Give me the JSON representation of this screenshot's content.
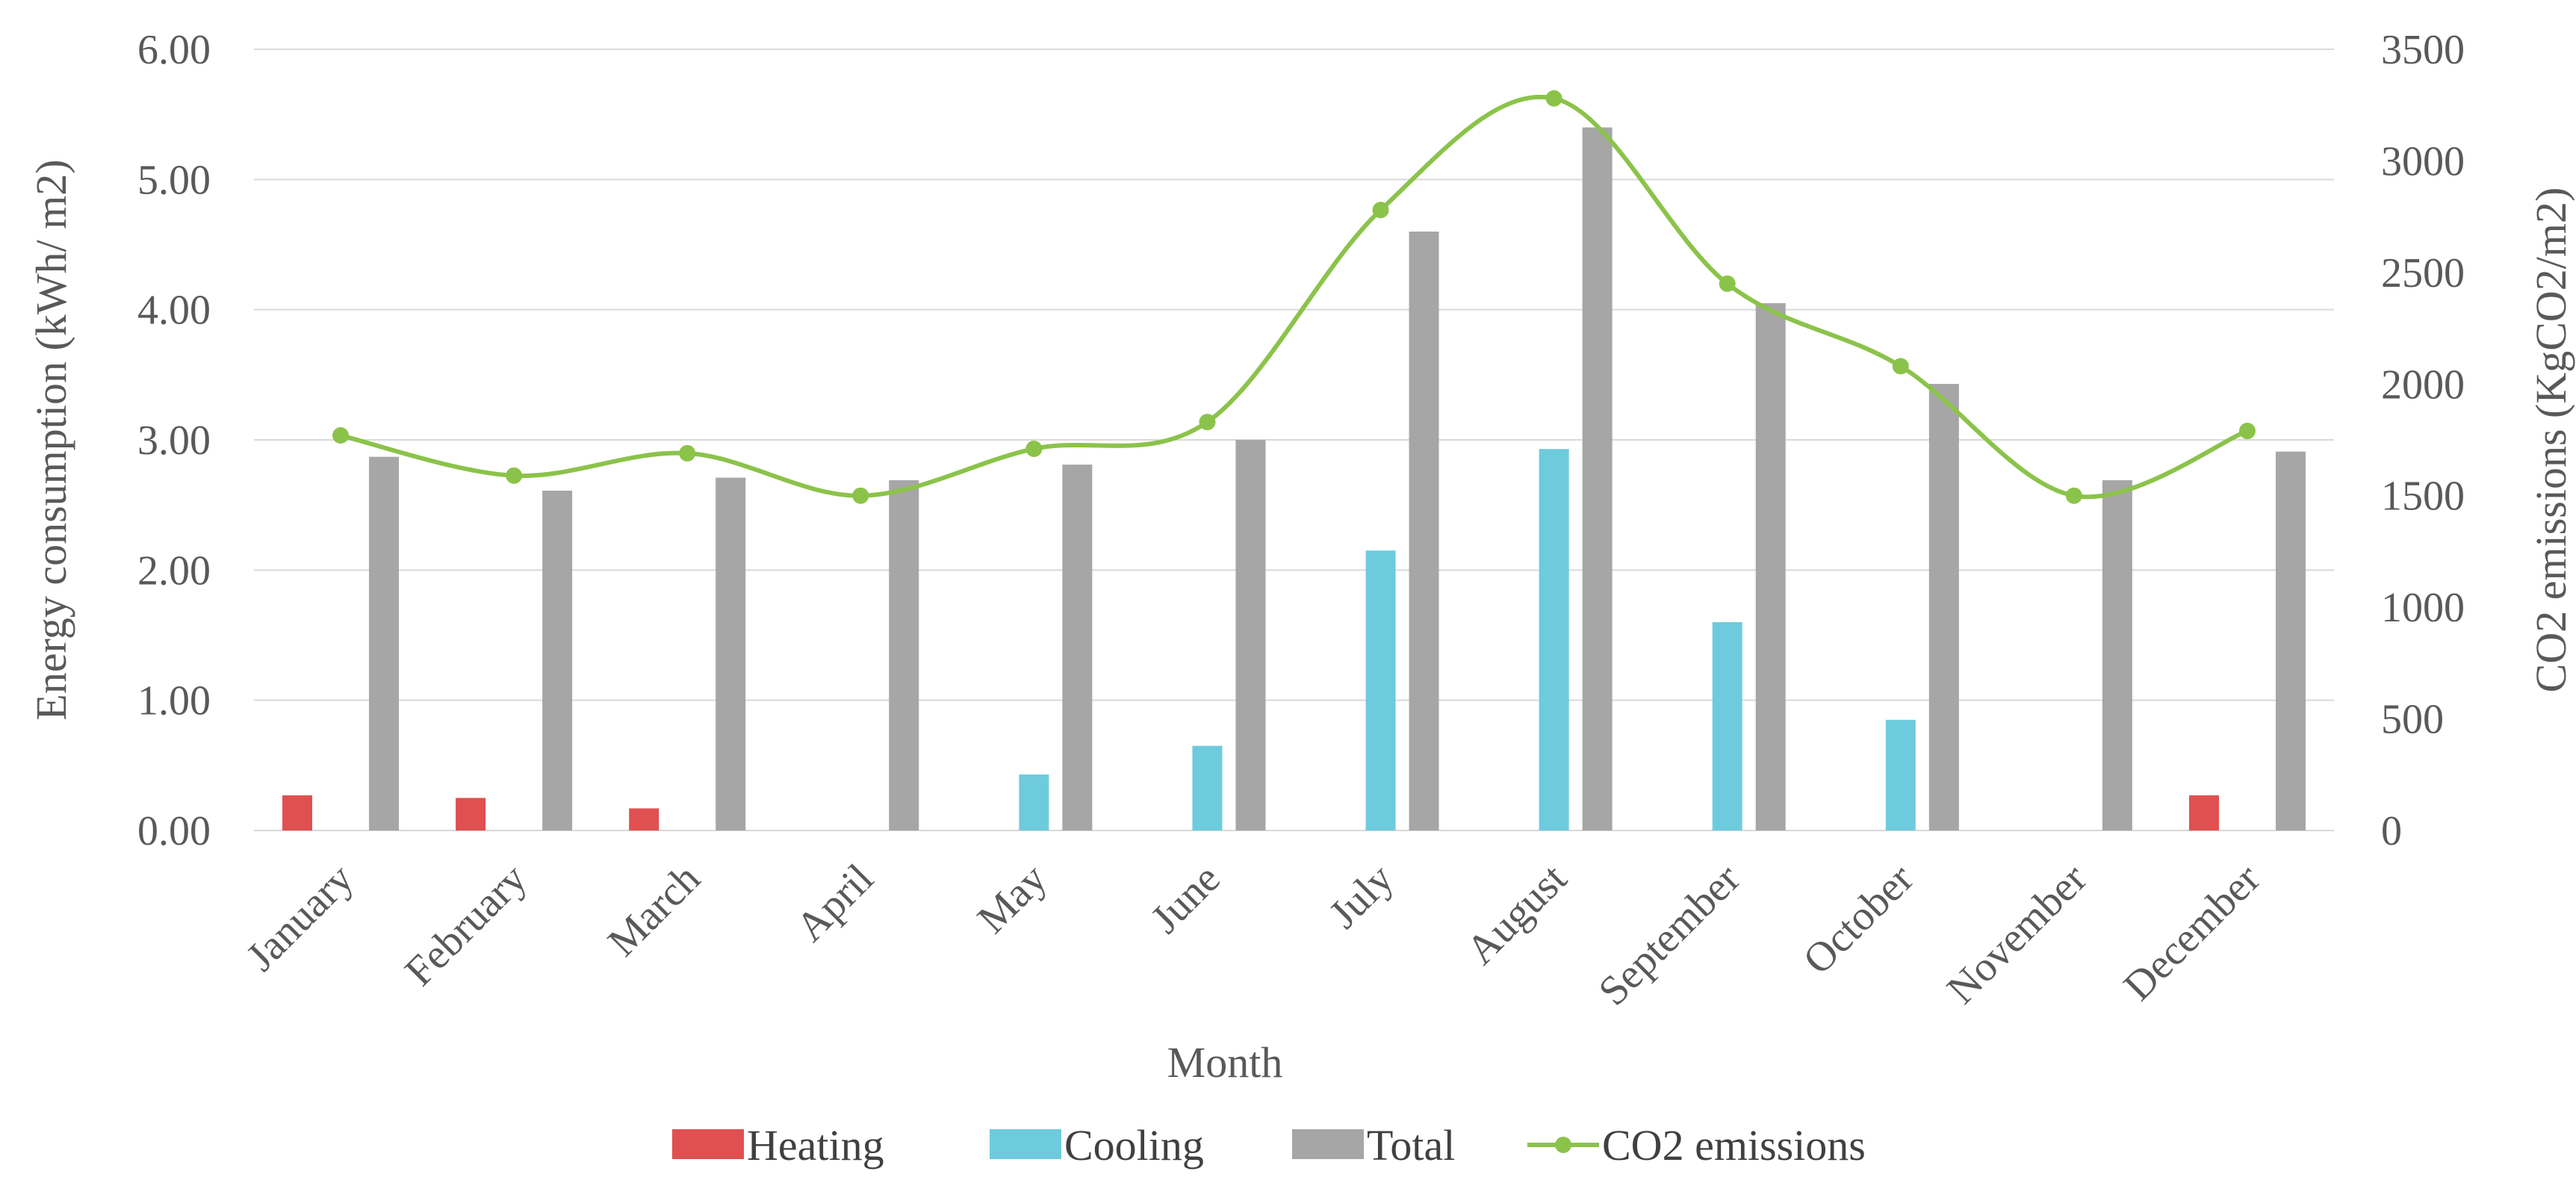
{
  "chart_data": {
    "type": "bar",
    "categories": [
      "January",
      "February",
      "March",
      "April",
      "May",
      "June",
      "July",
      "August",
      "September",
      "October",
      "November",
      "December"
    ],
    "series": [
      {
        "name": "Heating",
        "type": "bar",
        "axis": "left",
        "color": "#e05050",
        "values": [
          0.27,
          0.25,
          0.17,
          0,
          0,
          0,
          0,
          0,
          0,
          0,
          0,
          0.27
        ]
      },
      {
        "name": "Cooling",
        "type": "bar",
        "axis": "left",
        "color": "#6ecbdd",
        "values": [
          0,
          0,
          0,
          0,
          0.43,
          0.65,
          2.15,
          2.93,
          1.6,
          0.85,
          0,
          0
        ]
      },
      {
        "name": "Total",
        "type": "bar",
        "axis": "left",
        "color": "#a6a6a6",
        "values": [
          2.87,
          2.61,
          2.71,
          2.69,
          2.81,
          3.0,
          4.6,
          5.4,
          4.05,
          3.43,
          2.69,
          2.91
        ]
      },
      {
        "name": "CO2 emissions",
        "type": "line",
        "axis": "right",
        "color": "#8bc34a",
        "values": [
          1770,
          1590,
          1690,
          1500,
          1710,
          1830,
          2780,
          3280,
          2450,
          2080,
          1500,
          1790
        ]
      }
    ],
    "y_left": {
      "label": "Energy consumption (kWh/ m2)",
      "lim": [
        0,
        6
      ],
      "ticks": [
        "0.00",
        "1.00",
        "2.00",
        "3.00",
        "4.00",
        "5.00",
        "6.00"
      ]
    },
    "y_right": {
      "label": "CO2 emissions (KgCO2/m2)",
      "lim": [
        0,
        3500
      ],
      "ticks": [
        "0",
        "500",
        "1000",
        "1500",
        "2000",
        "2500",
        "3000",
        "3500"
      ]
    },
    "xlabel": "Month",
    "grid": true,
    "legend": {
      "position": "bottom",
      "entries": [
        "Heating",
        "Cooling",
        "Total",
        "CO2 emissions"
      ]
    }
  }
}
